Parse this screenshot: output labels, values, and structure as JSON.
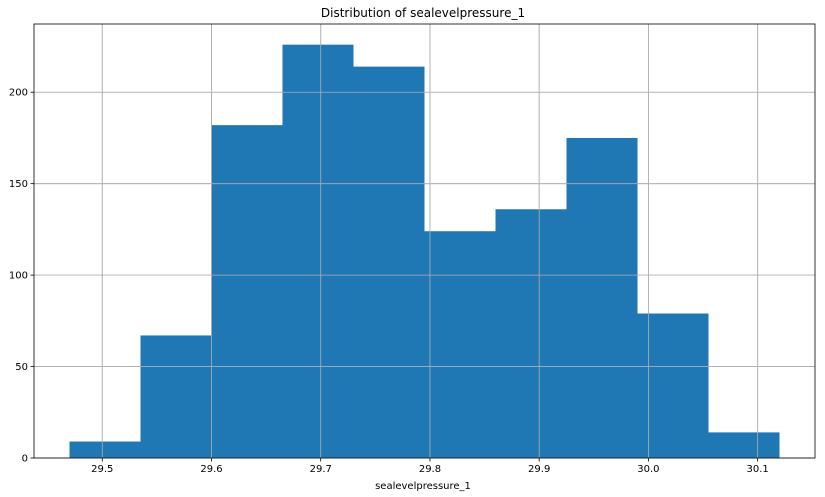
{
  "chart_data": {
    "type": "bar",
    "title": "Distribution of sealevelpressure_1",
    "xlabel": "sealevelpressure_1",
    "ylabel": "",
    "bin_edges": [
      29.47,
      29.535,
      29.6,
      29.665,
      29.73,
      29.795,
      29.86,
      29.925,
      29.99,
      30.055,
      30.12
    ],
    "values": [
      9,
      67,
      182,
      226,
      214,
      124,
      136,
      175,
      79,
      14
    ],
    "xlim": [
      29.4375,
      30.1525
    ],
    "ylim": [
      0,
      237.3
    ],
    "x_ticks": [
      29.5,
      29.6,
      29.7,
      29.8,
      29.9,
      30.0,
      30.1
    ],
    "x_tick_labels": [
      "29.5",
      "29.6",
      "29.7",
      "29.8",
      "29.9",
      "30.0",
      "30.1"
    ],
    "y_ticks": [
      0,
      50,
      100,
      150,
      200
    ],
    "y_tick_labels": [
      "0",
      "50",
      "100",
      "150",
      "200"
    ],
    "grid": true,
    "bar_color": "#1f77b4"
  }
}
